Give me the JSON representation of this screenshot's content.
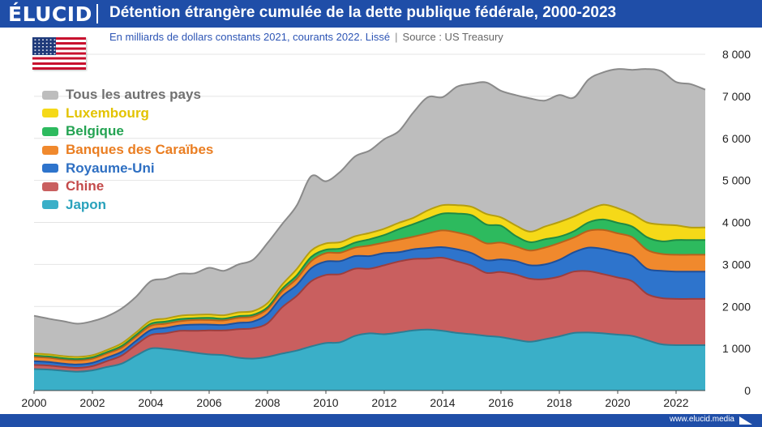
{
  "header": {
    "logo": "ÉLUCID",
    "title": "Détention étrangère cumulée de la dette publique fédérale, 2000-2023"
  },
  "subtitle": {
    "description": "En milliards de dollars constants 2021, courants 2022. Lissé",
    "separator": "|",
    "source": "Source : US Treasury"
  },
  "footer": {
    "url": "www.elucid.media"
  },
  "chart_data": {
    "type": "area",
    "stacked": true,
    "x_field": "year",
    "x": [
      2000,
      2000.5,
      2001,
      2001.5,
      2002,
      2002.5,
      2003,
      2003.5,
      2004,
      2004.5,
      2005,
      2005.5,
      2006,
      2006.5,
      2007,
      2007.5,
      2008,
      2008.5,
      2009,
      2009.5,
      2010,
      2010.5,
      2011,
      2011.5,
      2012,
      2012.5,
      2013,
      2013.5,
      2014,
      2014.5,
      2015,
      2015.5,
      2016,
      2016.5,
      2017,
      2017.5,
      2018,
      2018.5,
      2019,
      2019.5,
      2020,
      2020.5,
      2021,
      2021.5,
      2022,
      2022.5,
      2023
    ],
    "series": [
      {
        "name": "Japon",
        "color": "#3aafc8",
        "edge": "#2c7d94",
        "values": [
          510,
          500,
          470,
          450,
          480,
          560,
          640,
          830,
          1000,
          990,
          950,
          900,
          860,
          840,
          780,
          760,
          800,
          880,
          950,
          1050,
          1130,
          1150,
          1300,
          1360,
          1340,
          1380,
          1430,
          1450,
          1420,
          1370,
          1340,
          1300,
          1270,
          1210,
          1160,
          1220,
          1290,
          1370,
          1380,
          1360,
          1330,
          1300,
          1200,
          1100,
          1080,
          1080,
          1080
        ]
      },
      {
        "name": "Chine",
        "color": "#c95f5f",
        "edge": "#9c3e3e",
        "values": [
          100,
          95,
          90,
          90,
          100,
          140,
          190,
          260,
          320,
          370,
          470,
          520,
          570,
          590,
          680,
          720,
          800,
          1100,
          1300,
          1550,
          1620,
          1620,
          1600,
          1540,
          1640,
          1690,
          1700,
          1690,
          1740,
          1700,
          1630,
          1500,
          1550,
          1550,
          1500,
          1430,
          1420,
          1460,
          1460,
          1410,
          1360,
          1300,
          1100,
          1100,
          1100,
          1100,
          1100
        ]
      },
      {
        "name": "Royaume-Uni",
        "color": "#2e74cc",
        "edge": "#1f4f99",
        "values": [
          90,
          85,
          80,
          80,
          80,
          85,
          90,
          95,
          120,
          130,
          130,
          150,
          140,
          130,
          150,
          160,
          220,
          260,
          260,
          310,
          320,
          310,
          300,
          300,
          290,
          220,
          230,
          250,
          250,
          290,
          300,
          300,
          300,
          320,
          320,
          350,
          400,
          460,
          560,
          600,
          600,
          600,
          600,
          650,
          650,
          650,
          650
        ]
      },
      {
        "name": "Banques des Caraïbes",
        "color": "#f0892d",
        "edge": "#b7621c",
        "values": [
          100,
          100,
          100,
          100,
          100,
          100,
          100,
          100,
          100,
          100,
          100,
          110,
          110,
          110,
          120,
          120,
          120,
          120,
          150,
          170,
          200,
          200,
          200,
          250,
          250,
          300,
          300,
          350,
          400,
          400,
          400,
          400,
          400,
          350,
          350,
          400,
          400,
          350,
          400,
          450,
          450,
          450,
          450,
          400,
          400,
          400,
          400
        ]
      },
      {
        "name": "Belgique",
        "color": "#2dba5e",
        "edge": "#1f8a44",
        "values": [
          30,
          30,
          30,
          30,
          30,
          30,
          40,
          40,
          50,
          50,
          50,
          40,
          50,
          40,
          40,
          40,
          40,
          60,
          80,
          100,
          80,
          100,
          120,
          150,
          180,
          250,
          300,
          350,
          400,
          450,
          500,
          450,
          400,
          250,
          200,
          200,
          150,
          150,
          200,
          250,
          250,
          250,
          300,
          300,
          350,
          350,
          350
        ]
      },
      {
        "name": "Luxembourg",
        "color": "#f5d918",
        "edge": "#b49e10",
        "values": [
          50,
          50,
          50,
          50,
          50,
          50,
          60,
          60,
          70,
          70,
          80,
          80,
          80,
          80,
          90,
          90,
          100,
          100,
          150,
          150,
          150,
          150,
          150,
          150,
          150,
          150,
          150,
          200,
          200,
          200,
          200,
          250,
          200,
          250,
          250,
          300,
          350,
          350,
          300,
          350,
          350,
          300,
          350,
          400,
          350,
          300,
          300
        ]
      },
      {
        "name": "Tous les autres pays",
        "color": "#bdbdbd",
        "edge": "#8a8a8a",
        "values": [
          900,
          850,
          830,
          790,
          810,
          800,
          830,
          850,
          940,
          950,
          1000,
          990,
          1110,
          1060,
          1140,
          1220,
          1430,
          1440,
          1510,
          1770,
          1480,
          1680,
          1900,
          1960,
          2130,
          2180,
          2510,
          2690,
          2570,
          2820,
          2930,
          3130,
          3010,
          3100,
          3170,
          3000,
          3020,
          2830,
          3100,
          3150,
          3310,
          3430,
          3650,
          3650,
          3410,
          3410,
          3280
        ]
      }
    ],
    "legend": {
      "placement": "top-left",
      "order": [
        "Tous les autres pays",
        "Luxembourg",
        "Belgique",
        "Banques des Caraïbes",
        "Royaume-Uni",
        "Chine",
        "Japon"
      ],
      "label_colors": [
        "#707070",
        "#e3c300",
        "#24a352",
        "#ea7e22",
        "#2e6fc2",
        "#c44a4a",
        "#2aa2bc"
      ]
    },
    "xlim": [
      2000,
      2023
    ],
    "ylim": [
      0,
      8000
    ],
    "x_ticks": [
      2000,
      2002,
      2004,
      2006,
      2008,
      2010,
      2012,
      2014,
      2016,
      2018,
      2020,
      2022
    ],
    "x_tick_labels": [
      "2000",
      "2002",
      "2004",
      "2006",
      "2008",
      "2010",
      "2012",
      "2014",
      "2016",
      "2018",
      "2020",
      "2022"
    ],
    "y_ticks": [
      0,
      1000,
      2000,
      3000,
      4000,
      5000,
      6000,
      7000,
      8000
    ],
    "y_tick_labels": [
      "0",
      "1 000",
      "2 000",
      "3 000",
      "4 000",
      "5 000",
      "6 000",
      "7 000",
      "8 000"
    ],
    "y_axis_side": "right",
    "grid": true
  }
}
